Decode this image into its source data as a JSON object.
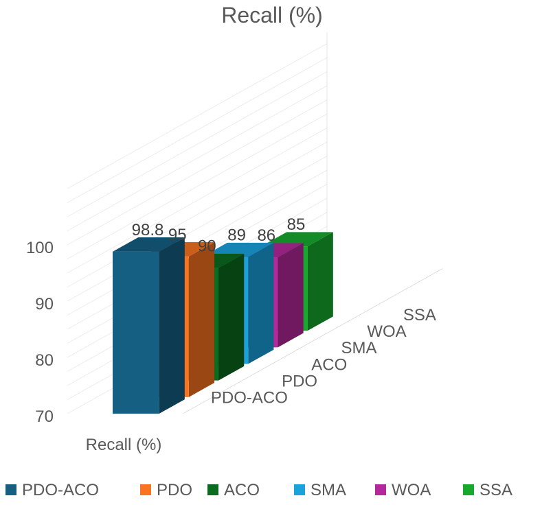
{
  "chart_data": {
    "type": "bar",
    "style": "3d-column",
    "title": "Recall (%)",
    "xlabel": "Recall (%)",
    "ylabel": "",
    "ylim": [
      70,
      100
    ],
    "yticks": [
      "70",
      "80",
      "90",
      "100"
    ],
    "category": "Recall (%)",
    "series": [
      {
        "name": "PDO-ACO",
        "value": 98.8,
        "label": "98.8",
        "color": "#155F83"
      },
      {
        "name": "PDO",
        "value": 95,
        "label": "95",
        "color": "#F97321"
      },
      {
        "name": "ACO",
        "value": 90,
        "label": "90",
        "color": "#0B6B1E"
      },
      {
        "name": "SMA",
        "value": 89,
        "label": "89",
        "color": "#1AA2DD"
      },
      {
        "name": "WOA",
        "value": 86,
        "label": "86",
        "color": "#B5289C"
      },
      {
        "name": "SSA",
        "value": 85,
        "label": "85",
        "color": "#17A92E"
      }
    ],
    "legend_position": "bottom",
    "grid": true
  }
}
